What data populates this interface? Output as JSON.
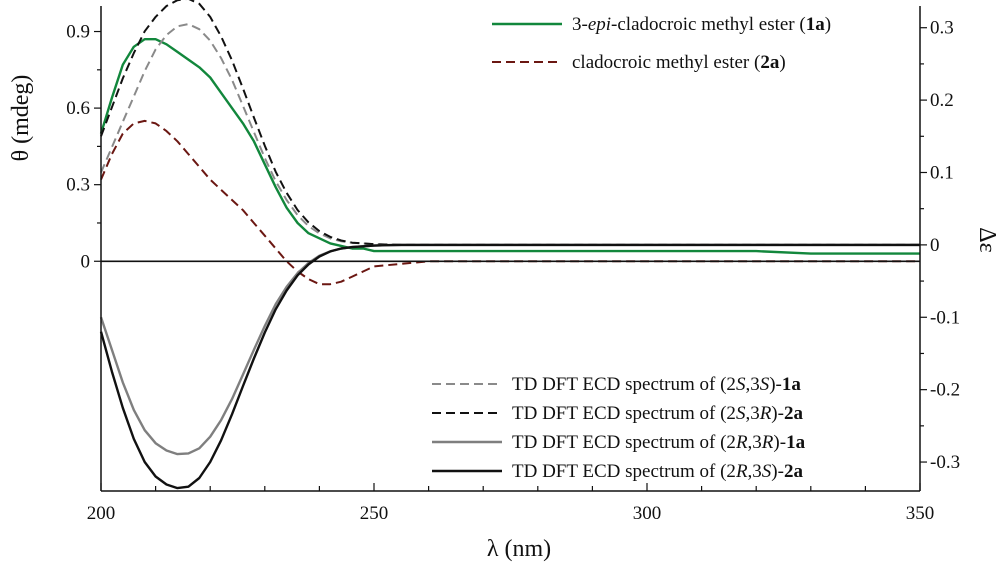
{
  "chart_data": {
    "type": "line",
    "xlabel": "λ (nm)",
    "ylabel_left": "θ (mdeg)",
    "ylabel_right": "Δε",
    "xlim": [
      200,
      350
    ],
    "ylim_left": [
      -0.9,
      1.0
    ],
    "ylim_right": [
      -0.34,
      0.33
    ],
    "x_ticks": [
      200,
      250,
      300,
      350
    ],
    "left_ticks": [
      {
        "value": 0,
        "label": "0"
      },
      {
        "value": 0.3,
        "label": "0.3"
      },
      {
        "value": 0.6,
        "label": "0.6"
      },
      {
        "value": 0.9,
        "label": "0.9"
      }
    ],
    "right_ticks": [
      {
        "value": 0.3,
        "label": "0.3"
      },
      {
        "value": 0.2,
        "label": "0.2"
      },
      {
        "value": 0.1,
        "label": "0.1"
      },
      {
        "value": 0,
        "label": "0"
      },
      {
        "value": -0.1,
        "label": "-0.1"
      },
      {
        "value": -0.2,
        "label": "-0.2"
      },
      {
        "value": -0.3,
        "label": "-0.3"
      }
    ],
    "grid": false,
    "legend_placement": [
      "top-right",
      "bottom-right"
    ],
    "series": [
      {
        "key": "exp_1a",
        "axis": "left",
        "style": "solid",
        "color": "#12873c",
        "legend_parts": [
          {
            "t": "3-",
            "s": "n"
          },
          {
            "t": "epi",
            "s": "i"
          },
          {
            "t": "-cladocroic methyl ester (",
            "s": "n"
          },
          {
            "t": "1a",
            "s": "b"
          },
          {
            "t": ")",
            "s": "n"
          }
        ],
        "x": [
          200,
          202,
          204,
          206,
          208,
          210,
          212,
          214,
          216,
          218,
          220,
          222,
          224,
          226,
          228,
          230,
          232,
          234,
          236,
          238,
          240,
          242,
          244,
          246,
          248,
          250,
          260,
          270,
          280,
          290,
          300,
          310,
          320,
          330,
          340,
          350
        ],
        "y": [
          0.5,
          0.64,
          0.77,
          0.84,
          0.87,
          0.87,
          0.85,
          0.82,
          0.79,
          0.76,
          0.72,
          0.66,
          0.6,
          0.54,
          0.47,
          0.38,
          0.29,
          0.21,
          0.15,
          0.11,
          0.09,
          0.07,
          0.06,
          0.05,
          0.05,
          0.04,
          0.04,
          0.04,
          0.04,
          0.04,
          0.04,
          0.04,
          0.04,
          0.03,
          0.03,
          0.03
        ]
      },
      {
        "key": "exp_2a",
        "axis": "left",
        "style": "dashed",
        "color": "#6b1712",
        "legend_parts": [
          {
            "t": "cladocroic methyl ester (",
            "s": "n"
          },
          {
            "t": "2a",
            "s": "b"
          },
          {
            "t": ")",
            "s": "n"
          }
        ],
        "x": [
          200,
          202,
          204,
          206,
          208,
          210,
          212,
          214,
          216,
          218,
          220,
          222,
          224,
          226,
          228,
          230,
          232,
          234,
          236,
          238,
          240,
          242,
          244,
          246,
          248,
          250,
          260,
          270,
          280,
          290,
          300,
          310,
          320,
          330,
          340,
          350
        ],
        "y": [
          0.32,
          0.42,
          0.5,
          0.54,
          0.55,
          0.54,
          0.51,
          0.47,
          0.42,
          0.37,
          0.32,
          0.28,
          0.24,
          0.2,
          0.15,
          0.1,
          0.05,
          0.0,
          -0.04,
          -0.07,
          -0.09,
          -0.09,
          -0.08,
          -0.06,
          -0.04,
          -0.02,
          0.0,
          0.0,
          0.0,
          0.0,
          0.0,
          0.0,
          0.0,
          0.0,
          0.0,
          0.0
        ]
      },
      {
        "key": "td_2S3S_1a",
        "axis": "right",
        "style": "dashed",
        "color": "#8a8a8a",
        "legend_parts": [
          {
            "t": "TD DFT ECD spectrum of (2",
            "s": "n"
          },
          {
            "t": "S",
            "s": "i"
          },
          {
            "t": ",3",
            "s": "n"
          },
          {
            "t": "S",
            "s": "i"
          },
          {
            "t": ")-",
            "s": "n"
          },
          {
            "t": "1a",
            "s": "b"
          }
        ],
        "x": [
          200,
          202,
          204,
          206,
          208,
          210,
          212,
          214,
          216,
          218,
          220,
          222,
          224,
          226,
          228,
          230,
          232,
          234,
          236,
          238,
          240,
          242,
          244,
          246,
          248,
          250,
          252,
          255,
          260,
          270,
          280,
          300,
          320,
          350
        ],
        "y": [
          0.1,
          0.135,
          0.17,
          0.205,
          0.24,
          0.27,
          0.29,
          0.302,
          0.305,
          0.298,
          0.282,
          0.258,
          0.228,
          0.192,
          0.156,
          0.12,
          0.088,
          0.062,
          0.041,
          0.026,
          0.016,
          0.009,
          0.005,
          0.003,
          0.002,
          0.001,
          0.0005,
          0.0,
          0.0,
          0.0,
          0.0,
          0.0,
          0.0,
          0.0
        ]
      },
      {
        "key": "td_2S3R_2a",
        "axis": "right",
        "style": "dashed",
        "color": "#111111",
        "legend_parts": [
          {
            "t": "TD DFT ECD spectrum of (2",
            "s": "n"
          },
          {
            "t": "S",
            "s": "i"
          },
          {
            "t": ",3",
            "s": "n"
          },
          {
            "t": "R",
            "s": "i"
          },
          {
            "t": ")-",
            "s": "n"
          },
          {
            "t": "2a",
            "s": "b"
          }
        ],
        "x": [
          200,
          202,
          204,
          206,
          208,
          210,
          212,
          214,
          216,
          218,
          220,
          222,
          224,
          226,
          228,
          230,
          232,
          234,
          236,
          238,
          240,
          242,
          244,
          246,
          248,
          250,
          252,
          255,
          260,
          270,
          280,
          300,
          320,
          350
        ],
        "y": [
          0.15,
          0.19,
          0.23,
          0.265,
          0.295,
          0.315,
          0.33,
          0.338,
          0.34,
          0.333,
          0.315,
          0.288,
          0.255,
          0.216,
          0.176,
          0.137,
          0.101,
          0.072,
          0.048,
          0.031,
          0.019,
          0.011,
          0.006,
          0.003,
          0.002,
          0.001,
          0.0005,
          0.0,
          0.0,
          0.0,
          0.0,
          0.0,
          0.0,
          0.0
        ]
      },
      {
        "key": "td_2R3R_1a",
        "axis": "right",
        "style": "solid",
        "color": "#7f7f7f",
        "legend_parts": [
          {
            "t": "TD DFT ECD spectrum of (2",
            "s": "n"
          },
          {
            "t": "R",
            "s": "i"
          },
          {
            "t": ",3",
            "s": "n"
          },
          {
            "t": "R",
            "s": "i"
          },
          {
            "t": ")-",
            "s": "n"
          },
          {
            "t": "1a",
            "s": "b"
          }
        ],
        "x": [
          200,
          202,
          204,
          206,
          208,
          210,
          212,
          214,
          216,
          218,
          220,
          222,
          224,
          226,
          228,
          230,
          232,
          234,
          236,
          238,
          240,
          242,
          244,
          246,
          248,
          250,
          252,
          255,
          260,
          270,
          280,
          300,
          320,
          350
        ],
        "y": [
          -0.1,
          -0.145,
          -0.19,
          -0.228,
          -0.256,
          -0.274,
          -0.284,
          -0.289,
          -0.288,
          -0.281,
          -0.265,
          -0.242,
          -0.213,
          -0.179,
          -0.145,
          -0.112,
          -0.082,
          -0.058,
          -0.039,
          -0.025,
          -0.015,
          -0.009,
          -0.005,
          -0.003,
          -0.002,
          -0.001,
          -0.0005,
          0.0,
          0.0,
          0.0,
          0.0,
          0.0,
          0.0,
          0.0
        ]
      },
      {
        "key": "td_2R3S_2a",
        "axis": "right",
        "style": "solid",
        "color": "#111111",
        "legend_parts": [
          {
            "t": "TD DFT ECD spectrum of (2",
            "s": "n"
          },
          {
            "t": "R",
            "s": "i"
          },
          {
            "t": ",3",
            "s": "n"
          },
          {
            "t": "S",
            "s": "i"
          },
          {
            "t": ")-",
            "s": "n"
          },
          {
            "t": "2a",
            "s": "b"
          }
        ],
        "x": [
          200,
          202,
          204,
          206,
          208,
          210,
          212,
          214,
          216,
          218,
          220,
          222,
          224,
          226,
          228,
          230,
          232,
          234,
          236,
          238,
          240,
          242,
          244,
          246,
          248,
          250,
          252,
          255,
          260,
          270,
          280,
          300,
          320,
          350
        ],
        "y": [
          -0.12,
          -0.175,
          -0.225,
          -0.268,
          -0.3,
          -0.32,
          -0.331,
          -0.336,
          -0.334,
          -0.322,
          -0.3,
          -0.27,
          -0.234,
          -0.195,
          -0.157,
          -0.121,
          -0.089,
          -0.063,
          -0.042,
          -0.027,
          -0.016,
          -0.009,
          -0.005,
          -0.003,
          -0.002,
          -0.001,
          -0.0005,
          0.0,
          0.0,
          0.0,
          0.0,
          0.0,
          0.0,
          0.0
        ]
      }
    ]
  }
}
